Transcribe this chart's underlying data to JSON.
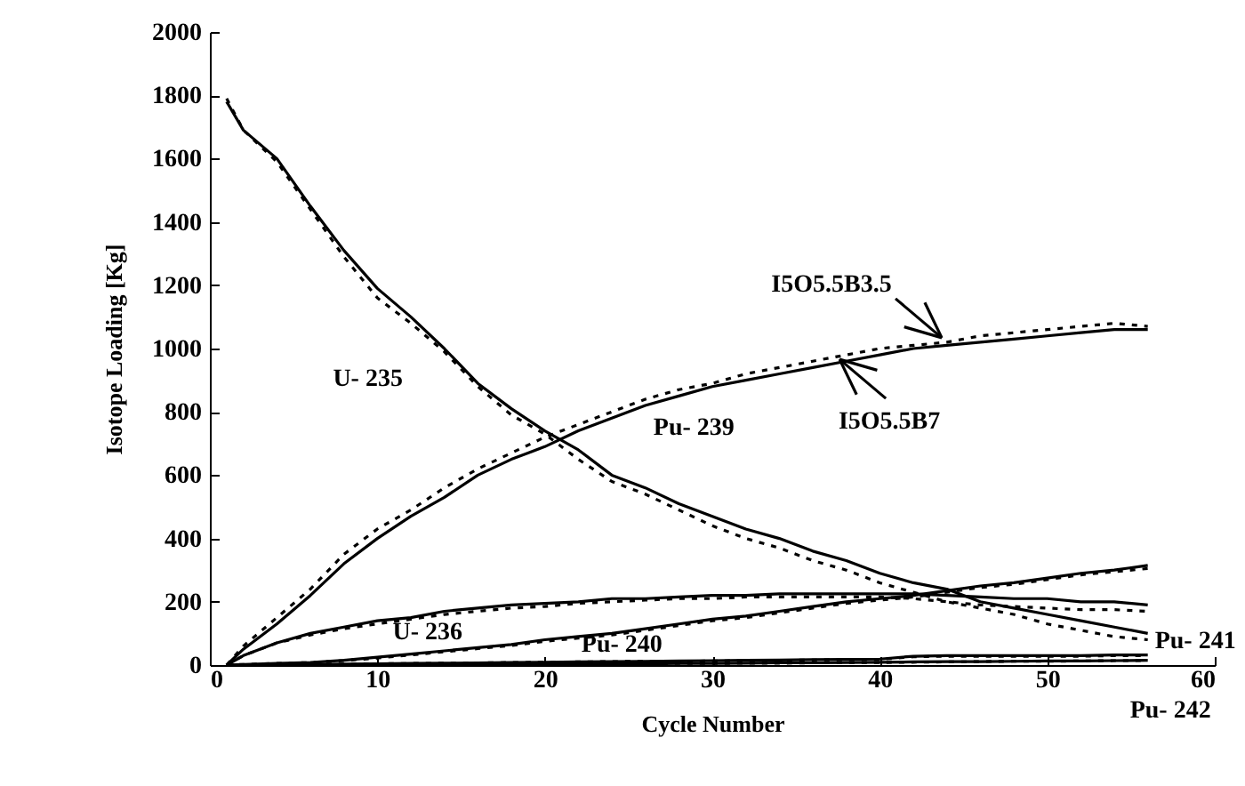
{
  "chart_data": {
    "type": "line",
    "xlabel": "Cycle Number",
    "ylabel": "Isotope Loading [Kg]",
    "x": [
      1,
      2,
      4,
      6,
      8,
      10,
      12,
      14,
      16,
      18,
      20,
      22,
      24,
      26,
      28,
      30,
      32,
      34,
      36,
      38,
      40,
      42,
      44,
      46,
      48,
      50,
      52,
      54,
      56
    ],
    "xlim": [
      0,
      60
    ],
    "xticks": [
      0,
      10,
      20,
      30,
      40,
      50,
      60
    ],
    "ylim": [
      0,
      2000
    ],
    "yticks": [
      0,
      200,
      400,
      600,
      800,
      1000,
      1200,
      1400,
      1600,
      1800,
      2000
    ],
    "series": [
      {
        "color": "#000000",
        "line_style": "solid",
        "values": [
          1780,
          1690,
          1600,
          1450,
          1310,
          1190,
          1100,
          1000,
          890,
          810,
          740,
          680,
          600,
          560,
          510,
          470,
          430,
          400,
          360,
          330,
          290,
          260,
          240,
          200,
          180,
          160,
          140,
          120,
          100
        ]
      },
      {
        "color": "#000000",
        "line_style": "dotted",
        "values": [
          1790,
          1690,
          1590,
          1440,
          1290,
          1160,
          1080,
          990,
          880,
          790,
          730,
          650,
          580,
          540,
          490,
          440,
          400,
          370,
          330,
          300,
          260,
          230,
          200,
          180,
          160,
          130,
          110,
          90,
          80
        ]
      },
      {
        "color": "#000000",
        "line_style": "solid",
        "values": [
          0,
          50,
          130,
          220,
          320,
          400,
          470,
          530,
          600,
          650,
          690,
          740,
          780,
          820,
          850,
          880,
          900,
          920,
          940,
          960,
          980,
          1000,
          1010,
          1020,
          1030,
          1040,
          1050,
          1060,
          1060
        ]
      },
      {
        "color": "#000000",
        "line_style": "dotted",
        "values": [
          0,
          60,
          150,
          240,
          350,
          430,
          490,
          560,
          620,
          670,
          720,
          760,
          800,
          840,
          870,
          890,
          920,
          940,
          960,
          980,
          1000,
          1010,
          1020,
          1040,
          1050,
          1060,
          1070,
          1080,
          1070
        ]
      },
      {
        "color": "#000000",
        "line_style": "solid",
        "values": [
          0,
          30,
          70,
          100,
          120,
          140,
          150,
          170,
          180,
          190,
          195,
          200,
          210,
          210,
          215,
          220,
          220,
          225,
          225,
          225,
          225,
          225,
          220,
          215,
          210,
          210,
          200,
          200,
          190
        ]
      },
      {
        "color": "#000000",
        "line_style": "dotted",
        "values": [
          0,
          30,
          70,
          95,
          115,
          130,
          145,
          160,
          170,
          180,
          185,
          195,
          200,
          205,
          210,
          210,
          215,
          215,
          215,
          215,
          215,
          210,
          200,
          190,
          185,
          180,
          175,
          175,
          170
        ]
      },
      {
        "color": "#000000",
        "line_style": "solid",
        "values": [
          0,
          2,
          5,
          8,
          15,
          25,
          35,
          45,
          55,
          65,
          80,
          90,
          100,
          115,
          130,
          145,
          155,
          170,
          185,
          200,
          210,
          220,
          235,
          250,
          260,
          275,
          290,
          300,
          315
        ]
      },
      {
        "color": "#000000",
        "line_style": "dotted",
        "values": [
          0,
          2,
          5,
          8,
          14,
          22,
          32,
          42,
          52,
          62,
          75,
          85,
          95,
          110,
          125,
          140,
          150,
          165,
          180,
          195,
          205,
          215,
          230,
          245,
          255,
          270,
          285,
          295,
          305
        ]
      },
      {
        "color": "#000000",
        "line_style": "solid",
        "values": [
          0,
          0,
          1,
          2,
          3,
          4,
          5,
          6,
          7,
          8,
          9,
          10,
          11,
          12,
          13,
          14,
          15,
          16,
          17,
          18,
          19,
          28,
          30,
          30,
          30,
          30,
          30,
          32,
          32
        ]
      },
      {
        "color": "#000000",
        "line_style": "dotted",
        "values": [
          0,
          0,
          1,
          2,
          3,
          4,
          5,
          6,
          7,
          8,
          9,
          10,
          11,
          12,
          12,
          13,
          14,
          15,
          16,
          17,
          18,
          26,
          28,
          28,
          28,
          28,
          28,
          30,
          30
        ]
      },
      {
        "color": "#000000",
        "line_style": "solid",
        "values": [
          0,
          0,
          0,
          0,
          0,
          1,
          1,
          1,
          2,
          2,
          3,
          3,
          4,
          4,
          5,
          5,
          6,
          7,
          7,
          8,
          9,
          10,
          11,
          11,
          12,
          13,
          13,
          14,
          15
        ]
      },
      {
        "color": "#000000",
        "line_style": "dotted",
        "values": [
          0,
          0,
          0,
          0,
          0,
          1,
          1,
          1,
          2,
          2,
          3,
          3,
          4,
          4,
          5,
          5,
          6,
          6,
          7,
          8,
          8,
          9,
          10,
          11,
          12,
          12,
          13,
          14,
          14
        ]
      }
    ],
    "annotations": [
      {
        "text": "U- 235",
        "x": 15.7,
        "y": 905
      },
      {
        "text": "Pu- 239",
        "x": 28.9,
        "y": 863
      },
      {
        "text": "U- 236",
        "x": 13,
        "y": 160
      },
      {
        "text": "Pu- 240",
        "x": 24.6,
        "y": 105
      },
      {
        "text": "Pu- 241",
        "x": 56,
        "y": 32
      },
      {
        "text": "Pu- 242",
        "x": 56,
        "y": 15
      },
      {
        "text": "I5O5.5B3.5",
        "x": 43.7,
        "y": 1034
      },
      {
        "text": "I5O5.5B7",
        "x": 37.6,
        "y": 966
      }
    ]
  }
}
